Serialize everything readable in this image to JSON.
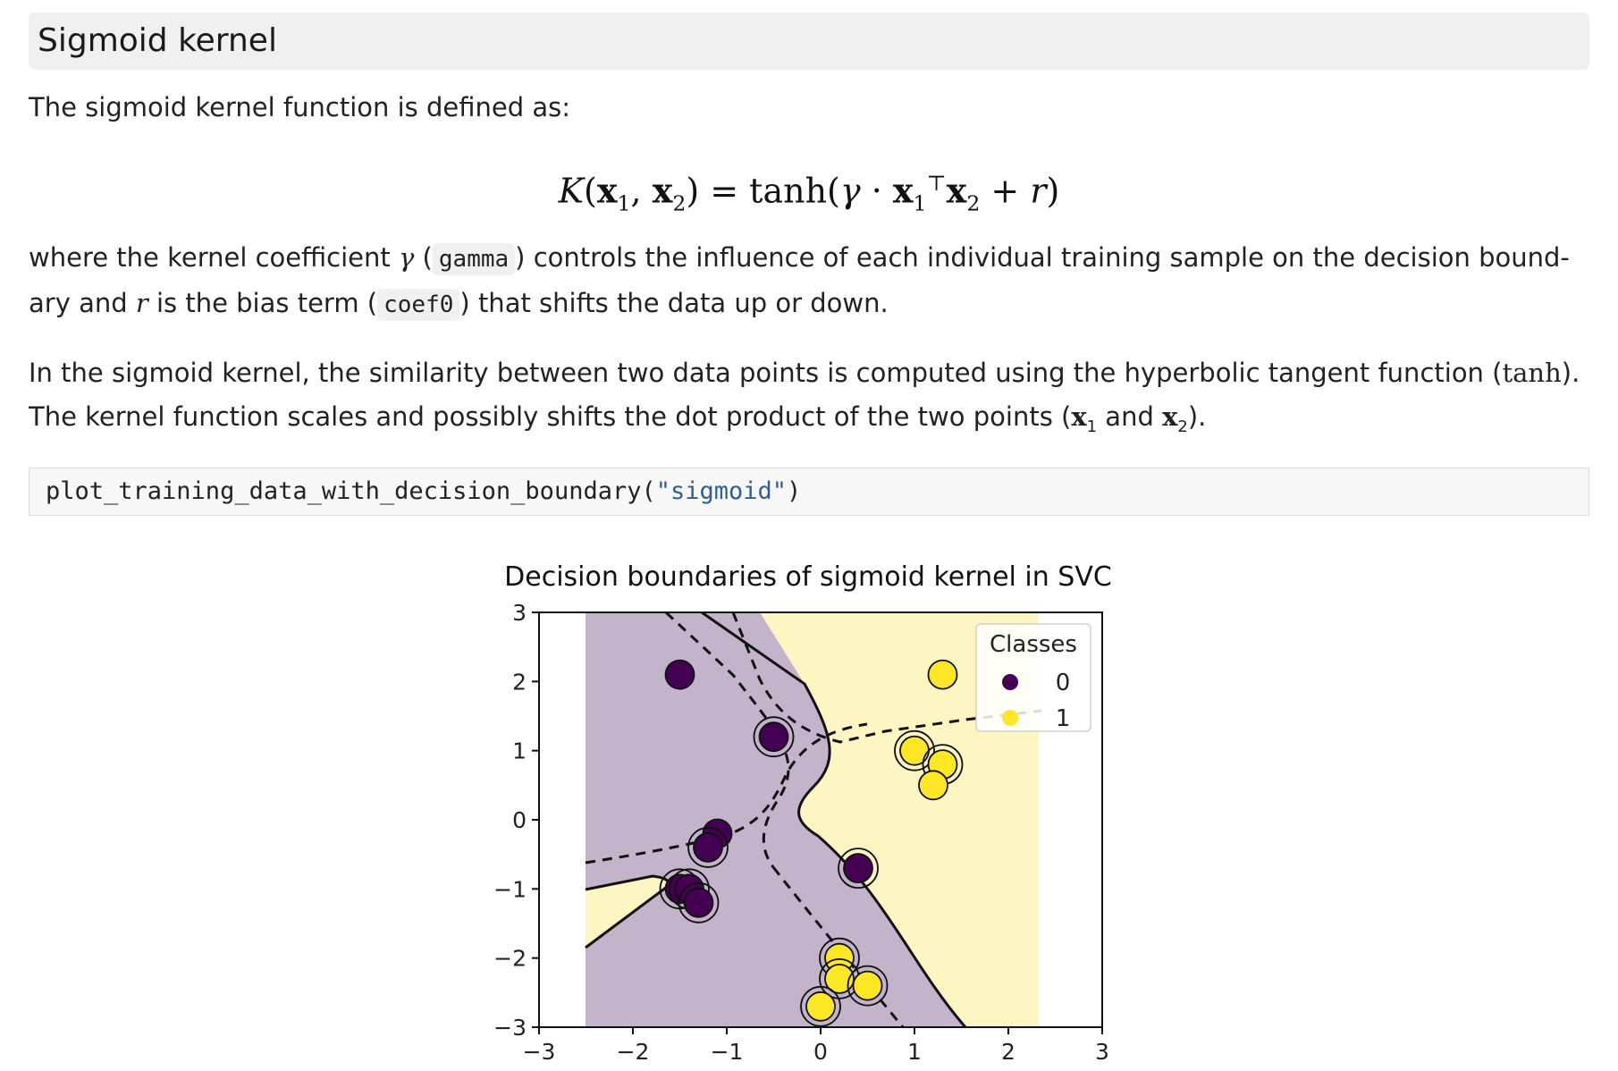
{
  "section": {
    "heading": "Sigmoid kernel"
  },
  "intro": {
    "text": "The sigmoid kernel function is defined as:"
  },
  "formula": {
    "K": "K",
    "x": "x",
    "sub1": "1",
    "sub2": "2",
    "eq": "=",
    "tanh": "tanh",
    "gamma": "γ",
    "dot": "·",
    "transpose": "⊤",
    "plus": "+",
    "r": "r"
  },
  "paragraph2": {
    "part1": "where the kernel coefficient ",
    "gamma_symbol": "γ",
    "part2": " (",
    "gamma_code": "gamma",
    "part3": ") controls the influence of each individual training sample on the decision bound-",
    "part4": "ary and ",
    "r_symbol": "r",
    "part5": " is the bias term (",
    "coef_code": "coef0",
    "part6": ") that shifts the data up or down."
  },
  "paragraph3": {
    "part1": "In the sigmoid kernel, the similarity between two data points is computed using the hyperbolic tangent function (",
    "tanh": "tanh",
    "part2": ").",
    "part3": "The kernel function scales and possibly shifts the dot product of the two points (",
    "x1": "x",
    "x1_sub": "1",
    "and": " and ",
    "x2": "x",
    "x2_sub": "2",
    "part4": ")."
  },
  "code": {
    "function": "plot_training_data_with_decision_boundary(",
    "argument": "\"sigmoid\"",
    "close": ")"
  },
  "chart_data": {
    "type": "scatter",
    "title": "Decision boundaries of sigmoid kernel in SVC",
    "xlabel": "",
    "ylabel": "",
    "xlim": [
      -3,
      3
    ],
    "ylim": [
      -3,
      3
    ],
    "xticks": [
      "−3",
      "−2",
      "−1",
      "0",
      "1",
      "2",
      "3"
    ],
    "yticks": [
      "3",
      "2",
      "1",
      "0",
      "−1",
      "−2",
      "−3"
    ],
    "legend": {
      "title": "Classes",
      "placement": "top-right",
      "entries": [
        "0",
        "1"
      ]
    },
    "colors": {
      "class0": "#440154",
      "class1": "#fde725",
      "region0": "#c3b3cb",
      "region1": "#fdf6c3"
    },
    "series": [
      {
        "name": "0",
        "points": [
          [
            -1.5,
            2.1
          ],
          [
            -0.5,
            1.2
          ],
          [
            -1.1,
            -0.2
          ],
          [
            -1.2,
            -0.4
          ],
          [
            -1.5,
            -1.0
          ],
          [
            -1.4,
            -1.0
          ],
          [
            -1.3,
            -1.2
          ],
          [
            0.4,
            -0.7
          ]
        ],
        "support_vector": [
          false,
          true,
          false,
          true,
          true,
          true,
          true,
          true
        ]
      },
      {
        "name": "1",
        "points": [
          [
            1.3,
            2.1
          ],
          [
            1.0,
            1.0
          ],
          [
            1.3,
            0.8
          ],
          [
            1.2,
            0.5
          ],
          [
            0.2,
            -2.0
          ],
          [
            0.2,
            -2.3
          ],
          [
            0.5,
            -2.4
          ],
          [
            0.0,
            -2.7
          ]
        ],
        "support_vector": [
          false,
          true,
          true,
          false,
          true,
          true,
          true,
          true
        ]
      }
    ]
  }
}
